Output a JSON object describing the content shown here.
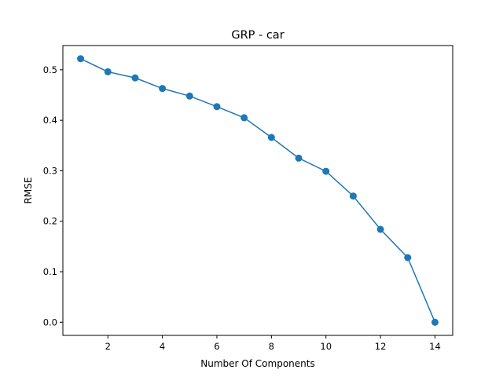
{
  "chart_data": {
    "type": "line",
    "title": "GRP - car",
    "xlabel": "Number Of Components",
    "ylabel": "RMSE",
    "xlim": [
      0.35,
      14.65
    ],
    "ylim": [
      -0.026,
      0.548
    ],
    "xticks": [
      2,
      4,
      6,
      8,
      10,
      12,
      14
    ],
    "xtick_labels": [
      "2",
      "4",
      "6",
      "8",
      "10",
      "12",
      "14"
    ],
    "yticks": [
      0.0,
      0.1,
      0.2,
      0.3,
      0.4,
      0.5
    ],
    "ytick_labels": [
      "0.0",
      "0.1",
      "0.2",
      "0.3",
      "0.4",
      "0.5"
    ],
    "grid": false,
    "series": [
      {
        "color": "#1f77b4",
        "marker": "circle",
        "x": [
          1,
          2,
          3,
          4,
          5,
          6,
          7,
          8,
          9,
          10,
          11,
          12,
          13,
          14
        ],
        "y": [
          0.522,
          0.496,
          0.484,
          0.463,
          0.448,
          0.427,
          0.405,
          0.366,
          0.325,
          0.299,
          0.25,
          0.184,
          0.128,
          0.0
        ]
      }
    ]
  }
}
